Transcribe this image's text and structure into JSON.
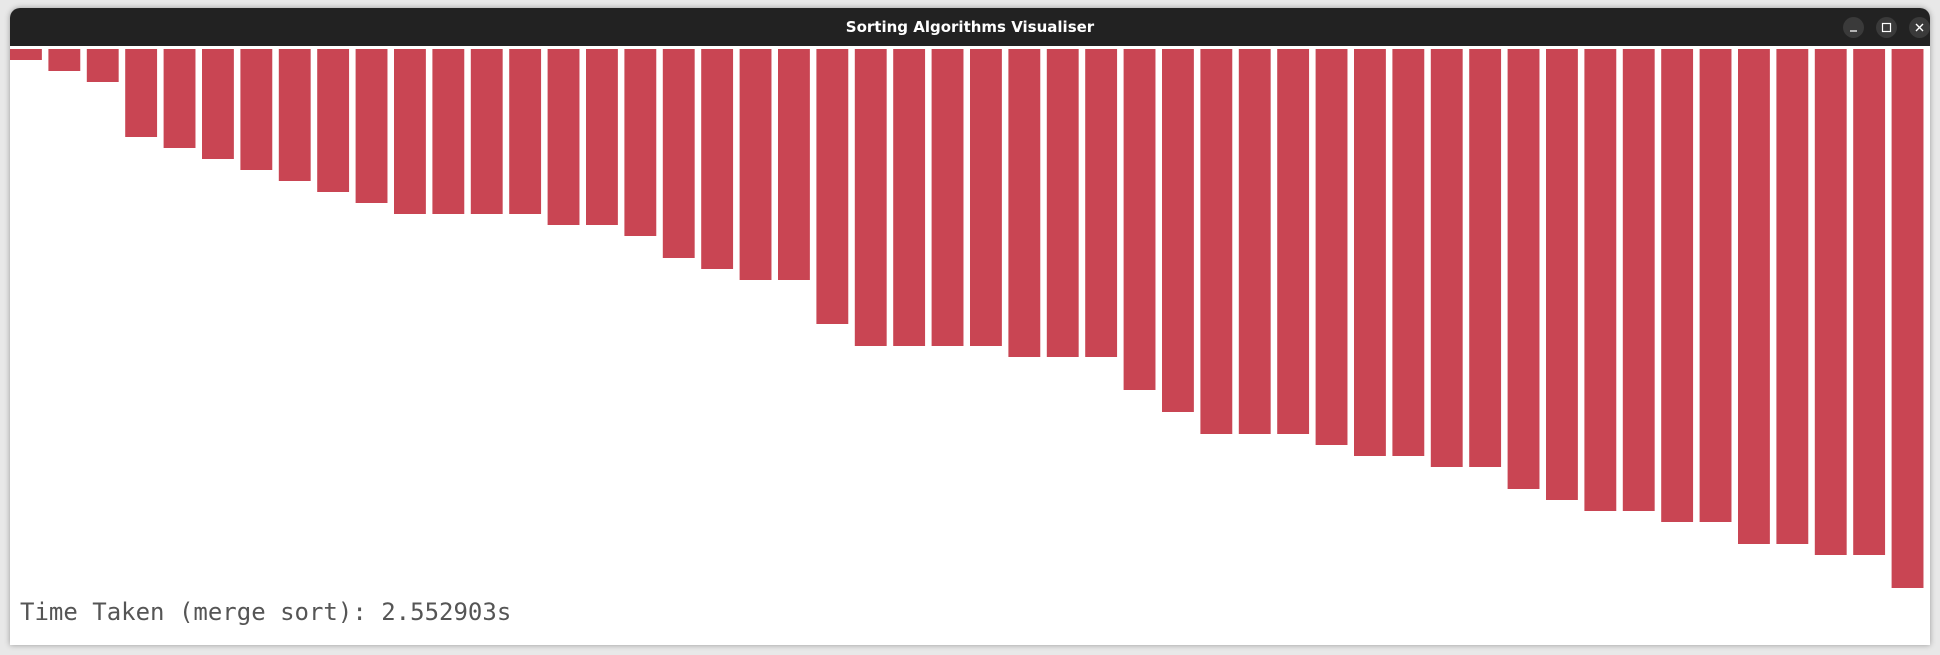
{
  "window": {
    "title": "Sorting Algorithms Visualiser"
  },
  "bars": {
    "color": "#c94553",
    "values": [
      1,
      2,
      3,
      8,
      9,
      10,
      11,
      12,
      13,
      14,
      15,
      15,
      15,
      15,
      16,
      16,
      17,
      19,
      20,
      21,
      21,
      25,
      27,
      27,
      27,
      27,
      28,
      28,
      28,
      31,
      33,
      35,
      35,
      35,
      36,
      37,
      37,
      38,
      38,
      40,
      41,
      42,
      42,
      43,
      43,
      45,
      45,
      46,
      46,
      49
    ]
  },
  "status": "Time Taken (merge sort): 2.552903s"
}
